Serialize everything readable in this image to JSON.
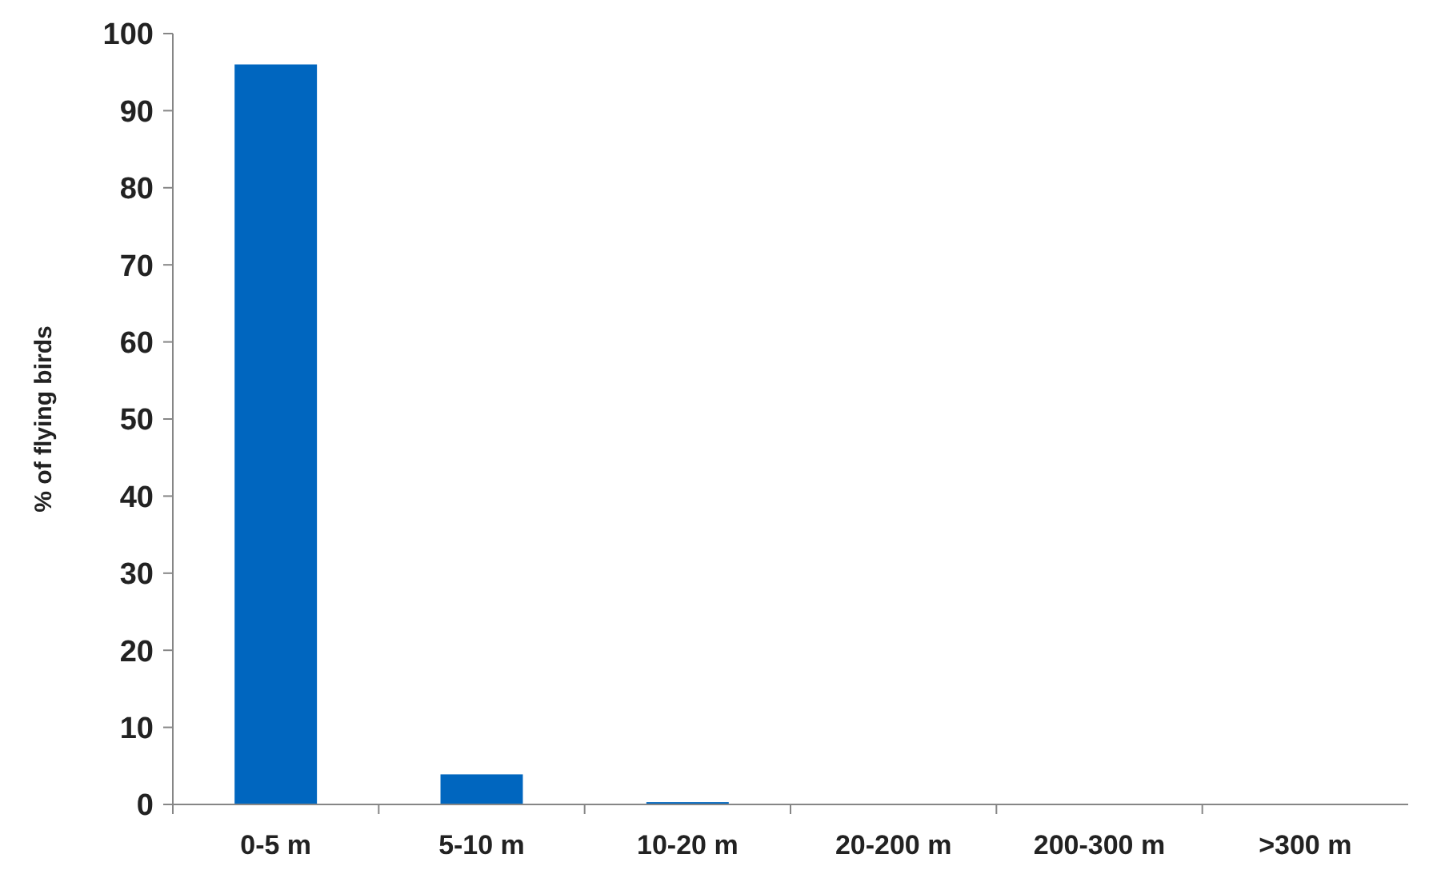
{
  "chart_data": {
    "type": "bar",
    "ylabel": "% of flying birds",
    "categories": [
      "0-5 m",
      "5-10 m",
      "10-20 m",
      "20-200 m",
      "200-300 m",
      ">300 m"
    ],
    "values": [
      96,
      3.9,
      0.3,
      0,
      0,
      0
    ],
    "color": "#0066bf",
    "ylim": [
      0,
      100
    ],
    "yticks": [
      0,
      10,
      20,
      30,
      40,
      50,
      60,
      70,
      80,
      90,
      100
    ],
    "grid": false
  }
}
